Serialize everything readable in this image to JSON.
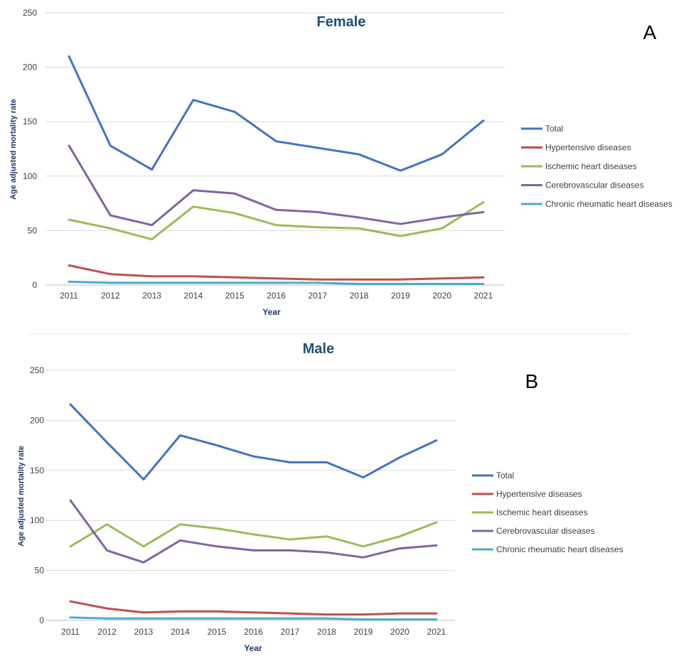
{
  "chart_data": [
    {
      "type": "line",
      "title": "Female",
      "panel_label": "A",
      "xlabel": "Year",
      "ylabel": "Age adjusted mortality rate",
      "ylim": [
        0,
        250
      ],
      "yticks": [
        "0",
        "50",
        "100",
        "150",
        "200",
        "250"
      ],
      "categories": [
        "2011",
        "2012",
        "2013",
        "2014",
        "2015",
        "2016",
        "2017",
        "2018",
        "2019",
        "2020",
        "2021"
      ],
      "grid": true,
      "legend": "right",
      "series": [
        {
          "name": "Total",
          "color": "#4472c4",
          "values": [
            210,
            128,
            106,
            170,
            159,
            132,
            126,
            120,
            105,
            120,
            151
          ]
        },
        {
          "name": "Hypertensive diseases",
          "color": "#c0504d",
          "values": [
            18,
            10,
            8,
            8,
            7,
            6,
            5,
            5,
            5,
            6,
            7
          ]
        },
        {
          "name": "Ischemic heart diseases",
          "color": "#9bbb59",
          "values": [
            60,
            52,
            42,
            72,
            66,
            55,
            53,
            52,
            45,
            52,
            76
          ]
        },
        {
          "name": "Cerebrovascular diseases",
          "color": "#8064a2",
          "values": [
            128,
            64,
            55,
            87,
            84,
            69,
            67,
            62,
            56,
            62,
            67
          ]
        },
        {
          "name": "Chronic rheumatic heart diseases",
          "color": "#4bacc6",
          "values": [
            3,
            2,
            2,
            2,
            2,
            2,
            2,
            1,
            1,
            1,
            1
          ]
        }
      ]
    },
    {
      "type": "line",
      "title": "Male",
      "panel_label": "B",
      "xlabel": "Year",
      "ylabel": "Age adjusted mortality rate",
      "ylim": [
        0,
        250
      ],
      "yticks": [
        "0",
        "50",
        "100",
        "150",
        "200",
        "250"
      ],
      "categories": [
        "2011",
        "2012",
        "2013",
        "2014",
        "2015",
        "2016",
        "2017",
        "2018",
        "2019",
        "2020",
        "2021"
      ],
      "grid": true,
      "legend": "right",
      "series": [
        {
          "name": "Total",
          "color": "#4472c4",
          "values": [
            216,
            178,
            141,
            185,
            175,
            164,
            158,
            158,
            143,
            163,
            180
          ]
        },
        {
          "name": "Hypertensive diseases",
          "color": "#c0504d",
          "values": [
            19,
            12,
            8,
            9,
            9,
            8,
            7,
            6,
            6,
            7,
            7
          ]
        },
        {
          "name": "Ischemic heart diseases",
          "color": "#9bbb59",
          "values": [
            74,
            96,
            74,
            96,
            92,
            86,
            81,
            84,
            74,
            84,
            98
          ]
        },
        {
          "name": "Cerebrovascular diseases",
          "color": "#8064a2",
          "values": [
            120,
            70,
            58,
            80,
            74,
            70,
            70,
            68,
            63,
            72,
            75
          ]
        },
        {
          "name": "Chronic rheumatic heart diseases",
          "color": "#4bacc6",
          "values": [
            3,
            2,
            2,
            2,
            2,
            2,
            2,
            2,
            1,
            1,
            1
          ]
        }
      ]
    }
  ]
}
